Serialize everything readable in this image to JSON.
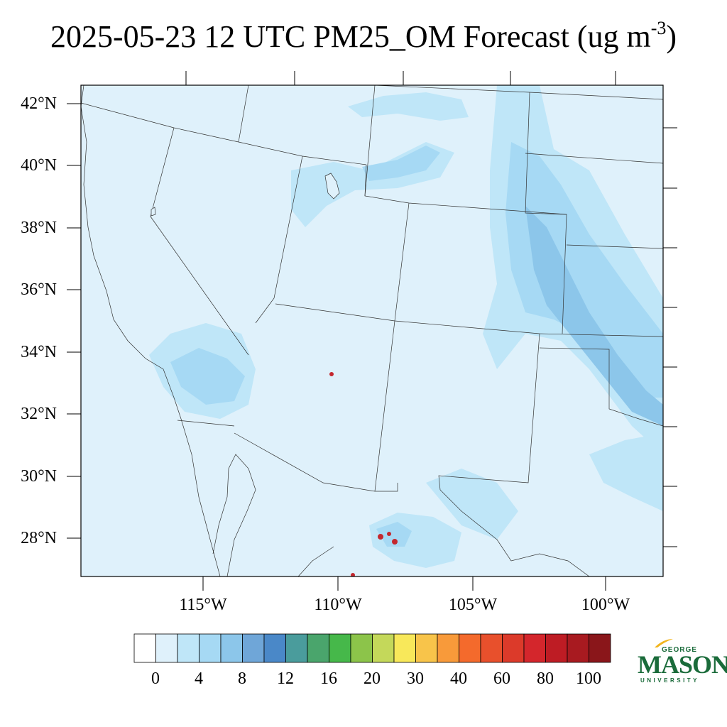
{
  "title": {
    "main": "2025-05-23 12 UTC PM25_OM Forecast (ug m",
    "superscript": "-3",
    "close": ")"
  },
  "map": {
    "lat_labels": [
      "42°N",
      "40°N",
      "38°N",
      "36°N",
      "34°N",
      "32°N",
      "30°N",
      "28°N"
    ],
    "lon_labels": [
      "115°W",
      "110°W",
      "105°W",
      "100°W"
    ],
    "background_color": "#dff1fb",
    "concentration_colors": {
      "light": "#bfe6f8",
      "medium": "#a6d9f4",
      "strong": "#8cc6ea",
      "stronger": "#6fa6d8",
      "hot": "#c4272e"
    }
  },
  "colorbar": {
    "labels": [
      "0",
      "4",
      "8",
      "12",
      "16",
      "20",
      "30",
      "40",
      "60",
      "80",
      "100"
    ],
    "colors": [
      "#ffffff",
      "#dff1fb",
      "#bfe6f8",
      "#a6d9f4",
      "#8cc6ea",
      "#6fa6d8",
      "#4a88c8",
      "#4a9c9c",
      "#4aa56c",
      "#46b84a",
      "#8cc44a",
      "#c4d85a",
      "#f8e85a",
      "#f8c44a",
      "#f89a3a",
      "#f46a2c",
      "#e8502c",
      "#dc3a2a",
      "#d4262c",
      "#be1c24",
      "#a81a20",
      "#8a161a"
    ]
  },
  "logo": {
    "line1": "GEORGE",
    "line2": "MASON",
    "line3": "UNIVERSITY",
    "color": "#1a6b3a",
    "accent": "#f2b51c"
  }
}
